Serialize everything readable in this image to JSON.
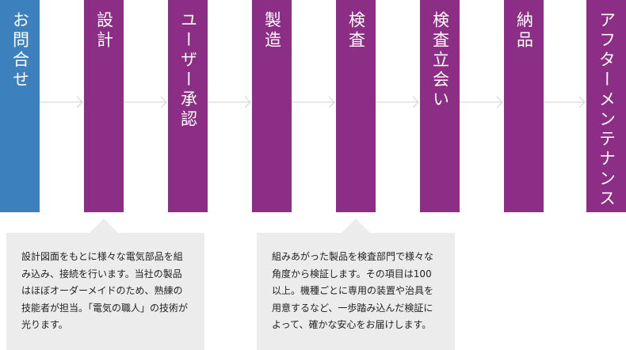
{
  "steps": [
    {
      "label": "お問合せ",
      "color": "#3d80be"
    },
    {
      "label": "設計",
      "color": "#8c2e85"
    },
    {
      "label": "ユーザー承認",
      "color": "#8c2e85"
    },
    {
      "label": "製造",
      "color": "#8c2e85"
    },
    {
      "label": "検査",
      "color": "#8c2e85"
    },
    {
      "label": "検査立会い",
      "color": "#8c2e85"
    },
    {
      "label": "納品",
      "color": "#8c2e85"
    },
    {
      "label": "アフターメンテナンス",
      "color": "#8c2e85"
    }
  ],
  "notes": {
    "design": "設計図面をもとに様々な電気部品を組み込み、接続を行います。当社の製品はほぼオーダーメイドのため、熟練の技能者が担当。「電気の職人」の技術が光ります。",
    "inspection": "組みあがった製品を検査部門で様々な角度から検証します。その項目は100以上。機種ごとに専用の装置や治具を用意するなど、一歩踏み込んだ検証によって、確かな安心をお届けします。"
  }
}
